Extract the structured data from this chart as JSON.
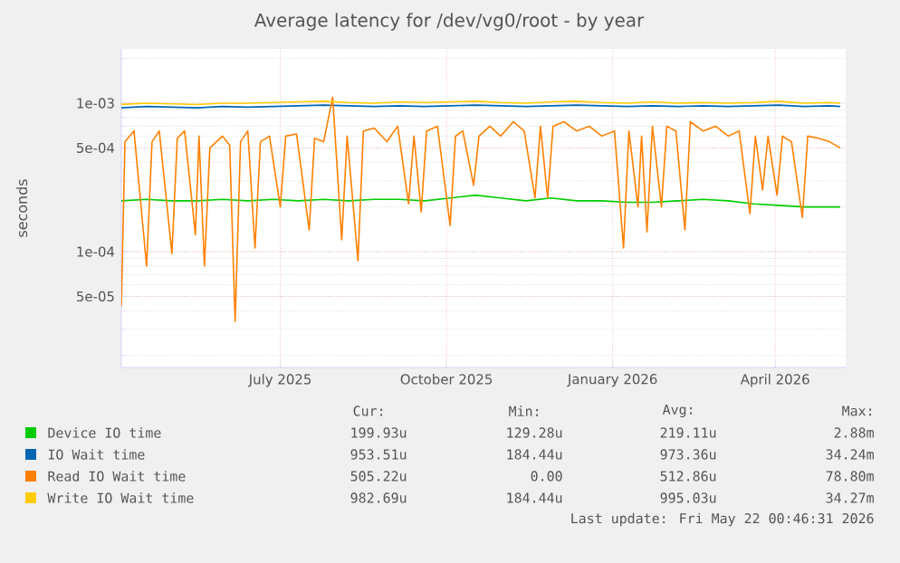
{
  "chart_data": {
    "type": "line",
    "title": "Average latency for /dev/vg0/root - by year",
    "ylabel": "seconds",
    "log": "y",
    "grid": true,
    "legend": "bottom",
    "xlim": [
      "2025-04-04",
      "2026-05-10"
    ],
    "xticks": [
      {
        "value": "2025-07-01",
        "label": "July 2025"
      },
      {
        "value": "2025-10-01",
        "label": "October 2025"
      },
      {
        "value": "2026-01-01",
        "label": "January 2026"
      },
      {
        "value": "2026-04-01",
        "label": "April 2026"
      }
    ],
    "ylim": [
      1.66e-05,
      0.00232
    ],
    "yticks": [
      {
        "value": 5e-05,
        "label": "5e-05"
      },
      {
        "value": 0.0001,
        "label": "1e-04"
      },
      {
        "value": 0.0005,
        "label": "5e-04"
      },
      {
        "value": 0.001,
        "label": "1e-03"
      }
    ],
    "x": [
      "2025-04-04",
      "2025-04-18",
      "2025-05-02",
      "2025-05-16",
      "2025-05-30",
      "2025-06-13",
      "2025-06-27",
      "2025-07-11",
      "2025-07-25",
      "2025-08-08",
      "2025-08-22",
      "2025-09-05",
      "2025-09-19",
      "2025-10-03",
      "2025-10-17",
      "2025-10-31",
      "2025-11-14",
      "2025-11-28",
      "2025-12-12",
      "2025-12-26",
      "2026-01-09",
      "2026-01-23",
      "2026-02-06",
      "2026-02-20",
      "2026-03-06",
      "2026-03-20",
      "2026-04-03",
      "2026-04-17",
      "2026-05-01",
      "2026-05-07"
    ],
    "series": [
      {
        "name": "Device IO time",
        "color": "#00cc00",
        "values": [
          0.00022,
          0.000225,
          0.00022,
          0.00022,
          0.000225,
          0.00022,
          0.000225,
          0.00022,
          0.000225,
          0.00022,
          0.000225,
          0.000225,
          0.00022,
          0.00023,
          0.00024,
          0.00023,
          0.00022,
          0.00023,
          0.00022,
          0.00022,
          0.000215,
          0.000215,
          0.00022,
          0.000225,
          0.00022,
          0.00021,
          0.000205,
          0.0002,
          0.0002,
          0.0002
        ]
      },
      {
        "name": "IO Wait time",
        "color": "#0066b3",
        "values": [
          0.00093,
          0.00095,
          0.00094,
          0.00093,
          0.00095,
          0.00094,
          0.00095,
          0.00096,
          0.00097,
          0.00096,
          0.00095,
          0.00096,
          0.00095,
          0.00096,
          0.00097,
          0.00096,
          0.00095,
          0.00096,
          0.00097,
          0.00096,
          0.00095,
          0.00096,
          0.00095,
          0.00096,
          0.00095,
          0.00096,
          0.00097,
          0.00095,
          0.00096,
          0.00095
        ]
      },
      {
        "name": "Read IO Wait time",
        "color": "#ff8000",
        "x": [
          "2025-04-04",
          "2025-04-06",
          "2025-04-11",
          "2025-04-18",
          "2025-04-21",
          "2025-04-25",
          "2025-05-02",
          "2025-05-05",
          "2025-05-09",
          "2025-05-15",
          "2025-05-17",
          "2025-05-20",
          "2025-05-23",
          "2025-05-30",
          "2025-06-03",
          "2025-06-06",
          "2025-06-09",
          "2025-06-13",
          "2025-06-17",
          "2025-06-20",
          "2025-06-25",
          "2025-07-01",
          "2025-07-04",
          "2025-07-10",
          "2025-07-17",
          "2025-07-20",
          "2025-07-25",
          "2025-07-30",
          "2025-08-04",
          "2025-08-07",
          "2025-08-13",
          "2025-08-16",
          "2025-08-22",
          "2025-08-29",
          "2025-09-04",
          "2025-09-10",
          "2025-09-13",
          "2025-09-17",
          "2025-09-20",
          "2025-09-26",
          "2025-10-03",
          "2025-10-06",
          "2025-10-10",
          "2025-10-16",
          "2025-10-19",
          "2025-10-25",
          "2025-10-31",
          "2025-11-07",
          "2025-11-13",
          "2025-11-19",
          "2025-11-22",
          "2025-11-26",
          "2025-11-29",
          "2025-12-05",
          "2025-12-12",
          "2025-12-19",
          "2025-12-26",
          "2026-01-02",
          "2026-01-07",
          "2026-01-10",
          "2026-01-15",
          "2026-01-17",
          "2026-01-20",
          "2026-01-23",
          "2026-01-28",
          "2026-01-31",
          "2026-02-05",
          "2026-02-10",
          "2026-02-13",
          "2026-02-20",
          "2026-02-27",
          "2026-03-06",
          "2026-03-12",
          "2026-03-18",
          "2026-03-21",
          "2026-03-25",
          "2026-03-28",
          "2026-04-02",
          "2026-04-05",
          "2026-04-10",
          "2026-04-16",
          "2026-04-19",
          "2026-04-25",
          "2026-05-01",
          "2026-05-07"
        ],
        "values": [
          4.3e-05,
          0.00055,
          0.00065,
          8e-05,
          0.00055,
          0.00065,
          9.7e-05,
          0.00058,
          0.00065,
          0.00013,
          0.0006,
          8e-05,
          0.0005,
          0.0006,
          0.00052,
          3.4e-05,
          0.00055,
          0.00065,
          0.000106,
          0.00055,
          0.0006,
          0.0002,
          0.0006,
          0.00062,
          0.00014,
          0.00058,
          0.00055,
          0.0011,
          0.00012,
          0.0006,
          8.7e-05,
          0.00065,
          0.00068,
          0.00055,
          0.0007,
          0.00021,
          0.0006,
          0.000185,
          0.00065,
          0.0007,
          0.00015,
          0.0006,
          0.00065,
          0.00028,
          0.0006,
          0.0007,
          0.0006,
          0.00075,
          0.00065,
          0.00023,
          0.0007,
          0.00023,
          0.0007,
          0.00075,
          0.00065,
          0.0007,
          0.0006,
          0.00065,
          0.000106,
          0.00065,
          0.0002,
          0.0006,
          0.000136,
          0.0007,
          0.0002,
          0.0007,
          0.00065,
          0.00014,
          0.00075,
          0.00065,
          0.0007,
          0.0006,
          0.00065,
          0.00018,
          0.0006,
          0.00026,
          0.0006,
          0.00024,
          0.0006,
          0.00055,
          0.00017,
          0.0006,
          0.00058,
          0.00055,
          0.0005
        ]
      },
      {
        "name": "Write IO Wait time",
        "color": "#ffcc00",
        "values": [
          0.00098,
          0.001,
          0.00099,
          0.00098,
          0.001,
          0.001,
          0.00101,
          0.00102,
          0.00103,
          0.00101,
          0.001,
          0.00102,
          0.00101,
          0.00102,
          0.00103,
          0.00101,
          0.001,
          0.00102,
          0.00103,
          0.00101,
          0.001,
          0.00102,
          0.001,
          0.00101,
          0.001,
          0.00101,
          0.00103,
          0.001,
          0.00101,
          0.001
        ]
      }
    ],
    "annotations": [
      "Cur:",
      "Min:",
      "Avg:",
      "Max:",
      "199.93u",
      "129.28u",
      "219.11u",
      "2.88m",
      "953.51u",
      "184.44u",
      "973.36u",
      "34.24m",
      "505.22u",
      "0.00",
      "512.86u",
      "78.80m",
      "982.69u",
      "184.44u",
      "995.03u",
      "34.27m",
      "Last update: Fri May 22 00:46:31 2026"
    ]
  }
}
